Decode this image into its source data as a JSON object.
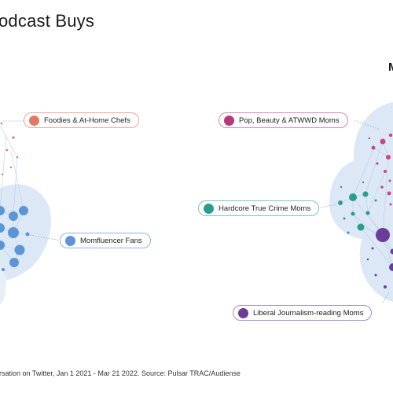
{
  "header": {
    "title": "odcast Buys",
    "corner_label": "M"
  },
  "footer": {
    "source": "ersation on Twitter, Jan 1 2021 - Mar 21 2022. Source: Pulsar TRAC/Audiense"
  },
  "legend": {
    "foodies": {
      "label": "Foodies & At-Home Chefs",
      "color": "#e07a64"
    },
    "momfluencer": {
      "label": "Momfluencer Fans",
      "color": "#5b95d6"
    },
    "pop_beauty": {
      "label": "Pop, Beauty & ATWWD Moms",
      "color": "#b8367a"
    },
    "true_crime": {
      "label": "Hardcore True Crime Moms",
      "color": "#2a9d8f"
    },
    "journalism": {
      "label": "Liberal Journalism-reading Moms",
      "color": "#6a3d9a"
    }
  },
  "colors": {
    "cluster_fill": "#dce8f6",
    "edge": "#b9cde6",
    "connector": "#8aa7cc"
  }
}
